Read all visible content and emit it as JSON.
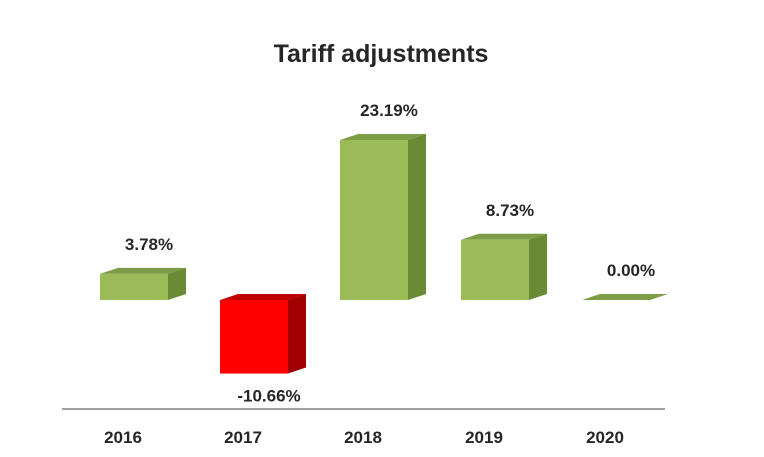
{
  "chart_data": {
    "type": "bar",
    "title": "Tariff adjustments",
    "categories": [
      "2016",
      "2017",
      "2018",
      "2019",
      "2020"
    ],
    "values": [
      3.78,
      -10.66,
      23.19,
      8.73,
      0.0
    ],
    "value_labels": [
      "3.78%",
      "-10.66%",
      "23.19%",
      "8.73%",
      "0.00%"
    ],
    "xlabel": "",
    "ylabel": "",
    "grid": false,
    "legend": "none",
    "three_d": true,
    "colors": {
      "positive_front": "#9bbb59",
      "positive_side": "#6a8a35",
      "positive_top": "#7c9c45",
      "negative_front": "#ff0000",
      "negative_side": "#a00000",
      "negative_top": "#c00000",
      "axis": "#808080"
    }
  }
}
